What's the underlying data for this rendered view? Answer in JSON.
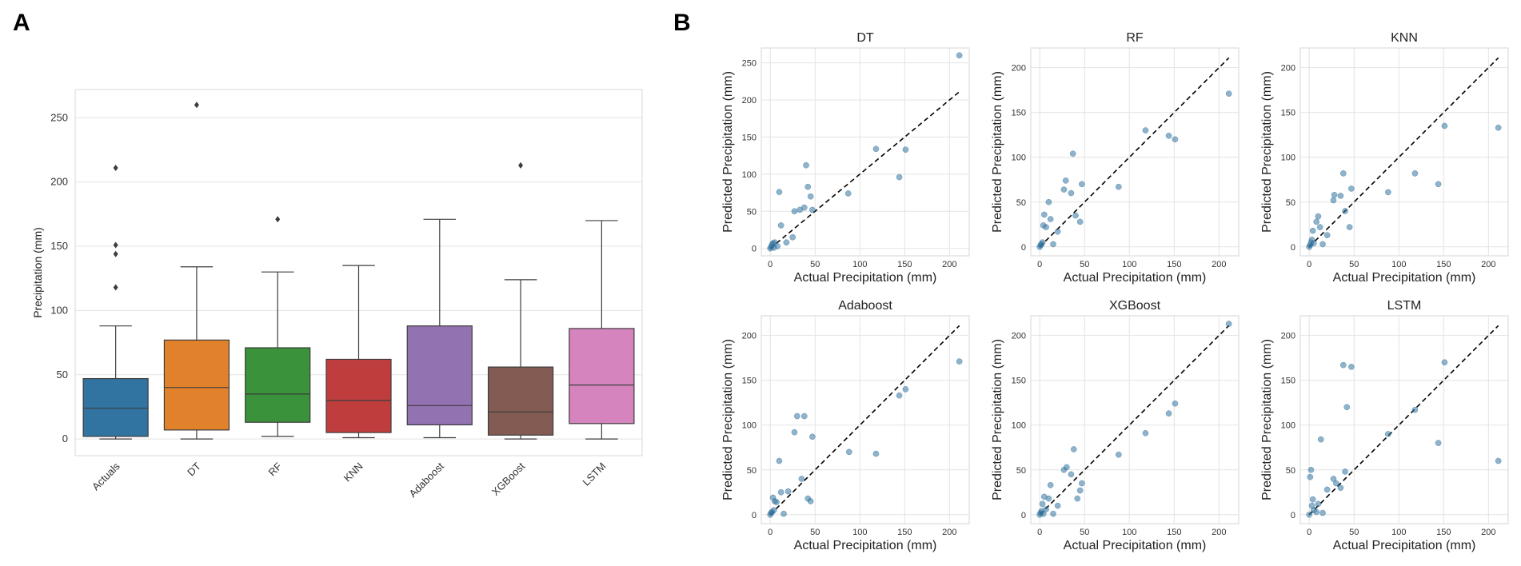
{
  "panels": {
    "a_label": "A",
    "b_label": "B"
  },
  "chart_data": [
    {
      "type": "box",
      "panel": "A",
      "ylabel": "Precipitation (mm)",
      "xlabel": "",
      "ylim": [
        -13,
        272
      ],
      "yticks": [
        0,
        50,
        100,
        150,
        200,
        250
      ],
      "grid": true,
      "categories": [
        "Actuals",
        "DT",
        "RF",
        "KNN",
        "Adaboost",
        "XGBoost",
        "LSTM"
      ],
      "colors": [
        "#3274a1",
        "#e1812c",
        "#3a923a",
        "#c03d3e",
        "#9372b2",
        "#845b53",
        "#d684bd"
      ],
      "boxes": [
        {
          "min": 0,
          "q1": 2,
          "median": 24,
          "q3": 47,
          "max": 88,
          "outliers": [
            118,
            144,
            151,
            211
          ]
        },
        {
          "min": 0,
          "q1": 7,
          "median": 40,
          "q3": 77,
          "max": 134,
          "outliers": [
            260
          ]
        },
        {
          "min": 2,
          "q1": 13,
          "median": 35,
          "q3": 71,
          "max": 130,
          "outliers": [
            171
          ]
        },
        {
          "min": 1,
          "q1": 5,
          "median": 30,
          "q3": 62,
          "max": 135,
          "outliers": []
        },
        {
          "min": 1,
          "q1": 11,
          "median": 26,
          "q3": 88,
          "max": 171,
          "outliers": []
        },
        {
          "min": 0,
          "q1": 3,
          "median": 21,
          "q3": 56,
          "max": 124,
          "outliers": [
            213
          ]
        },
        {
          "min": 0,
          "q1": 12,
          "median": 42,
          "q3": 86,
          "max": 170,
          "outliers": []
        }
      ]
    },
    {
      "type": "scatter",
      "panel": "B",
      "title": "DT",
      "xlabel": "Actual Precipitation (mm)",
      "ylabel": "Predicted Precipitation (mm)",
      "xlim": [
        -10,
        222
      ],
      "ylim": [
        -10,
        270
      ],
      "xticks": [
        0,
        50,
        100,
        150,
        200
      ],
      "yticks": [
        0,
        50,
        100,
        150,
        200,
        250
      ],
      "identity_line": [
        0,
        211
      ],
      "x": [
        0,
        1,
        2,
        3,
        4,
        5,
        8,
        10,
        12,
        18,
        25,
        27,
        33,
        38,
        40,
        42,
        45,
        47,
        87,
        118,
        144,
        151,
        211
      ],
      "y": [
        0,
        2,
        5,
        7,
        1,
        8,
        3,
        76,
        31,
        8,
        15,
        50,
        52,
        55,
        112,
        83,
        70,
        52,
        74,
        134,
        96,
        133,
        260
      ]
    },
    {
      "type": "scatter",
      "panel": "B",
      "title": "RF",
      "xlabel": "Actual Precipitation (mm)",
      "ylabel": "Predicted Precipitation (mm)",
      "xlim": [
        -10,
        222
      ],
      "ylim": [
        -10,
        222
      ],
      "xticks": [
        0,
        50,
        100,
        150,
        200
      ],
      "yticks": [
        0,
        50,
        100,
        150,
        200
      ],
      "identity_line": [
        0,
        211
      ],
      "x": [
        0,
        1,
        2,
        3,
        4,
        5,
        7,
        10,
        12,
        15,
        20,
        27,
        29,
        35,
        37,
        40,
        45,
        47,
        88,
        118,
        144,
        151,
        211
      ],
      "y": [
        0,
        2,
        3,
        5,
        24,
        36,
        22,
        50,
        31,
        3,
        17,
        64,
        74,
        60,
        104,
        35,
        28,
        70,
        67,
        130,
        124,
        120,
        171
      ]
    },
    {
      "type": "scatter",
      "panel": "B",
      "title": "KNN",
      "xlabel": "Actual Precipitation (mm)",
      "ylabel": "Predicted Precipitation (mm)",
      "xlim": [
        -10,
        222
      ],
      "ylim": [
        -10,
        222
      ],
      "xticks": [
        0,
        50,
        100,
        150,
        200
      ],
      "yticks": [
        0,
        50,
        100,
        150,
        200
      ],
      "identity_line": [
        0,
        211
      ],
      "x": [
        0,
        1,
        2,
        3,
        4,
        5,
        8,
        10,
        12,
        15,
        20,
        27,
        28,
        35,
        38,
        40,
        45,
        47,
        88,
        118,
        144,
        151,
        211
      ],
      "y": [
        0,
        2,
        5,
        8,
        18,
        4,
        28,
        34,
        22,
        3,
        13,
        52,
        58,
        57,
        82,
        40,
        22,
        65,
        61,
        82,
        70,
        135,
        133
      ]
    },
    {
      "type": "scatter",
      "panel": "B",
      "title": "Adaboost",
      "xlabel": "Actual Precipitation (mm)",
      "ylabel": "Predicted Precipitation (mm)",
      "xlim": [
        -10,
        222
      ],
      "ylim": [
        -10,
        222
      ],
      "xticks": [
        0,
        50,
        100,
        150,
        200
      ],
      "yticks": [
        0,
        50,
        100,
        150,
        200
      ],
      "identity_line": [
        0,
        211
      ],
      "x": [
        0,
        1,
        2,
        3,
        4,
        5,
        7,
        10,
        12,
        15,
        20,
        27,
        30,
        35,
        38,
        42,
        45,
        47,
        88,
        118,
        144,
        151,
        211
      ],
      "y": [
        0,
        2,
        3,
        19,
        5,
        15,
        14,
        60,
        25,
        1,
        26,
        92,
        110,
        40,
        110,
        18,
        15,
        87,
        70,
        68,
        133,
        140,
        171
      ]
    },
    {
      "type": "scatter",
      "panel": "B",
      "title": "XGBoost",
      "xlabel": "Actual Precipitation (mm)",
      "ylabel": "Predicted Precipitation (mm)",
      "xlim": [
        -10,
        222
      ],
      "ylim": [
        -10,
        222
      ],
      "xticks": [
        0,
        50,
        100,
        150,
        200
      ],
      "yticks": [
        0,
        50,
        100,
        150,
        200
      ],
      "identity_line": [
        0,
        211
      ],
      "x": [
        0,
        1,
        2,
        3,
        4,
        5,
        7,
        10,
        12,
        15,
        20,
        27,
        30,
        35,
        38,
        42,
        45,
        47,
        88,
        118,
        144,
        151,
        211
      ],
      "y": [
        0,
        2,
        4,
        12,
        1,
        20,
        6,
        18,
        33,
        1,
        10,
        50,
        53,
        45,
        73,
        18,
        27,
        35,
        67,
        91,
        113,
        124,
        213
      ]
    },
    {
      "type": "scatter",
      "panel": "B",
      "title": "LSTM",
      "xlabel": "Actual Precipitation (mm)",
      "ylabel": "Predicted Precipitation (mm)",
      "xlim": [
        -10,
        222
      ],
      "ylim": [
        -10,
        222
      ],
      "xticks": [
        0,
        50,
        100,
        150,
        200
      ],
      "yticks": [
        0,
        50,
        100,
        150,
        200
      ],
      "identity_line": [
        0,
        211
      ],
      "x": [
        0,
        1,
        2,
        3,
        4,
        5,
        8,
        10,
        13,
        15,
        20,
        27,
        30,
        35,
        38,
        40,
        42,
        47,
        88,
        118,
        144,
        151,
        211
      ],
      "y": [
        0,
        42,
        50,
        10,
        17,
        5,
        3,
        12,
        84,
        2,
        28,
        40,
        35,
        30,
        167,
        48,
        120,
        165,
        90,
        117,
        80,
        170,
        60
      ]
    }
  ]
}
